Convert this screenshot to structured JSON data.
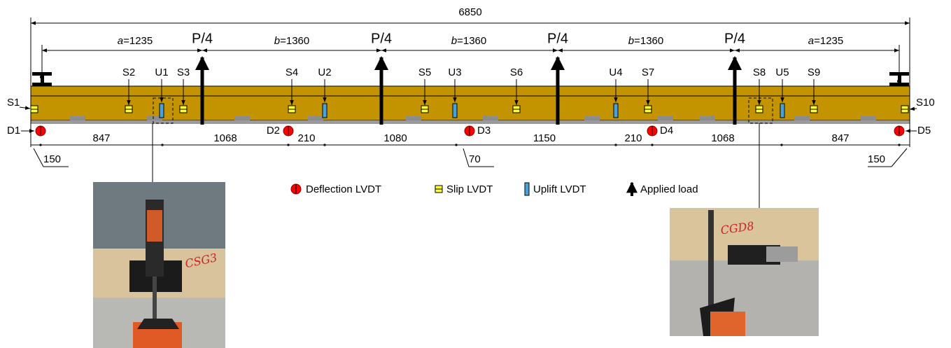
{
  "overall_span": "6850",
  "shear_spans": [
    {
      "symbol": "a",
      "value": "=1235"
    },
    {
      "symbol": "b",
      "value": "=1360"
    },
    {
      "symbol": "b",
      "value": "=1360"
    },
    {
      "symbol": "b",
      "value": "=1360"
    },
    {
      "symbol": "a",
      "value": "=1235"
    }
  ],
  "loads": [
    "P/4",
    "P/4",
    "P/4",
    "P/4"
  ],
  "slip_lvdts": [
    "S1",
    "S2",
    "S3",
    "S4",
    "S5",
    "S6",
    "S7",
    "S8",
    "S9",
    "S10"
  ],
  "uplift_lvdts": [
    "U1",
    "U2",
    "U3",
    "U4",
    "U5"
  ],
  "deflection_lvdts": [
    "D1",
    "D2",
    "D3",
    "D4",
    "D5"
  ],
  "bottom_dimensions": [
    "847",
    "1068",
    "210",
    "1080",
    "1150",
    "210",
    "1068",
    "847"
  ],
  "edge_dimensions": [
    "150",
    "70",
    "150"
  ],
  "legend": [
    "Deflection LVDT",
    "Slip LVDT",
    "Uplift LVDT",
    "Applied load"
  ],
  "photos": [
    {
      "marking": "CSG3"
    },
    {
      "marking": "CGD8"
    }
  ]
}
